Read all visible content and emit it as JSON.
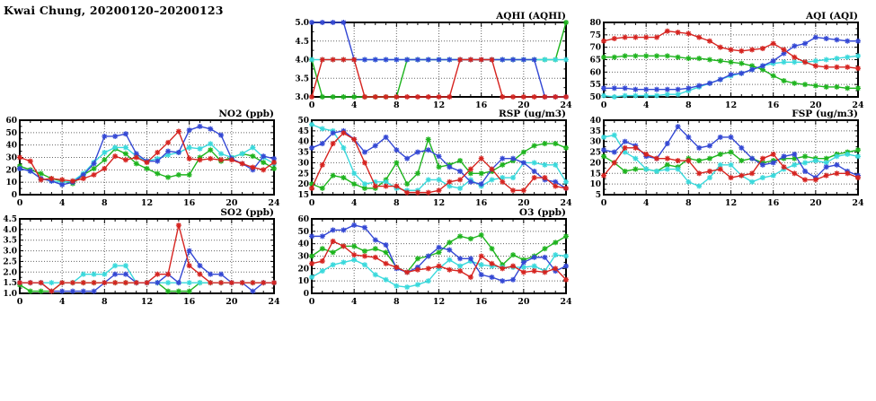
{
  "page_title": "Kwai Chung, 20200120–20200123",
  "series_colors": {
    "green": "#1fb41f",
    "cyan": "#3ad9dc",
    "blue": "#3448d4",
    "red": "#d62420"
  },
  "chart_data": [
    {
      "id": "aqhi",
      "type": "line",
      "title": "AQHI (AQHI)",
      "xlim": [
        0,
        24
      ],
      "xticks": [
        0,
        4,
        8,
        12,
        16,
        20,
        24
      ],
      "ylim": [
        3.0,
        5.0
      ],
      "yticks": [
        3.0,
        3.5,
        4.0,
        4.5,
        5.0
      ],
      "ydecimals": 1,
      "grid": true,
      "legend": "none",
      "series": [
        {
          "name": "green",
          "color": "#1fb41f",
          "values": [
            4,
            3,
            3,
            3,
            3,
            3,
            3,
            3,
            3,
            4,
            4,
            4,
            4,
            4,
            4,
            4,
            4,
            4,
            4,
            4,
            4,
            4,
            4,
            4,
            5
          ]
        },
        {
          "name": "cyan",
          "color": "#3ad9dc",
          "values": [
            4,
            4,
            4,
            4,
            4,
            4,
            4,
            4,
            4,
            4,
            4,
            4,
            4,
            4,
            4,
            4,
            4,
            4,
            4,
            4,
            4,
            4,
            4,
            4,
            4
          ]
        },
        {
          "name": "blue",
          "color": "#3448d4",
          "values": [
            5,
            5,
            5,
            5,
            4,
            4,
            4,
            4,
            4,
            4,
            4,
            4,
            4,
            4,
            4,
            4,
            4,
            4,
            4,
            4,
            4,
            4,
            3,
            3,
            3
          ]
        },
        {
          "name": "red",
          "color": "#d62420",
          "values": [
            3,
            4,
            4,
            4,
            4,
            3,
            3,
            3,
            3,
            3,
            3,
            3,
            3,
            3,
            4,
            4,
            4,
            4,
            3,
            3,
            3,
            3,
            3,
            3,
            3
          ]
        }
      ]
    },
    {
      "id": "aqi",
      "type": "line",
      "title": "AQI (AQI)",
      "xlim": [
        0,
        24
      ],
      "xticks": [
        0,
        4,
        8,
        12,
        16,
        20,
        24
      ],
      "ylim": [
        50,
        80
      ],
      "yticks": [
        50,
        55,
        60,
        65,
        70,
        75,
        80
      ],
      "ydecimals": 0,
      "grid": true,
      "legend": "none",
      "series": [
        {
          "name": "green",
          "color": "#1fb41f",
          "values": [
            66,
            66,
            66.5,
            66.5,
            66.5,
            66.5,
            66.5,
            66,
            65.5,
            65.5,
            65,
            64.5,
            64,
            63.5,
            62.5,
            61,
            58.5,
            56.5,
            55.5,
            55,
            54.5,
            54,
            54,
            53.5,
            53.5
          ]
        },
        {
          "name": "cyan",
          "color": "#3ad9dc",
          "values": [
            50.5,
            50,
            50.5,
            50.5,
            50.5,
            50.5,
            51,
            51,
            52.5,
            54,
            55.5,
            57,
            58.5,
            59.5,
            61,
            62.5,
            63.5,
            64,
            64,
            64,
            64.5,
            65,
            65.5,
            66,
            66.5
          ]
        },
        {
          "name": "blue",
          "color": "#3448d4",
          "values": [
            53.5,
            53.5,
            53.5,
            53,
            53,
            53,
            53,
            53,
            53.5,
            54.5,
            55.5,
            57,
            59,
            59.5,
            61,
            62.5,
            64.5,
            67.5,
            70.5,
            71.5,
            74,
            73.5,
            73,
            72.5,
            72.5
          ]
        },
        {
          "name": "red",
          "color": "#d62420",
          "values": [
            72.5,
            73.5,
            74,
            74,
            74,
            74,
            76.5,
            76,
            75.5,
            74,
            72.5,
            70,
            69,
            68.5,
            69,
            69.5,
            71.5,
            69,
            66,
            64,
            62.5,
            62,
            62,
            62,
            61.5
          ]
        }
      ]
    },
    {
      "id": "no2",
      "type": "line",
      "title": "NO2 (ppb)",
      "xlim": [
        0,
        24
      ],
      "xticks": [
        0,
        4,
        8,
        12,
        16,
        20,
        24
      ],
      "ylim": [
        0,
        60
      ],
      "yticks": [
        0,
        10,
        20,
        30,
        40,
        50,
        60
      ],
      "ydecimals": 0,
      "grid": true,
      "legend": "none",
      "series": [
        {
          "name": "green",
          "color": "#1fb41f",
          "values": [
            23,
            20,
            17,
            13,
            11,
            9,
            16,
            21,
            28,
            37,
            33,
            25,
            21,
            17,
            14,
            16,
            16,
            30,
            36,
            27,
            30,
            33,
            31,
            26,
            21
          ]
        },
        {
          "name": "cyan",
          "color": "#3ad9dc",
          "values": [
            21,
            19,
            13,
            11,
            10,
            11,
            17,
            26,
            34,
            38,
            38,
            31,
            27,
            29,
            32,
            34,
            38,
            37,
            41,
            33,
            30,
            33,
            38,
            30,
            25
          ]
        },
        {
          "name": "blue",
          "color": "#3448d4",
          "values": [
            21,
            19,
            13,
            11,
            8,
            10,
            16,
            25,
            47,
            47,
            49,
            33,
            27,
            27,
            35,
            34,
            52,
            55,
            53,
            48,
            29,
            25,
            20,
            31,
            29
          ]
        },
        {
          "name": "red",
          "color": "#d62420",
          "values": [
            30,
            27,
            12,
            13,
            12,
            11,
            13,
            16,
            21,
            31,
            28,
            30,
            26,
            34,
            42,
            51,
            29,
            28,
            29,
            28,
            28,
            25,
            22,
            20,
            26
          ]
        }
      ]
    },
    {
      "id": "rsp",
      "type": "line",
      "title": "RSP (ug/m3)",
      "xlim": [
        0,
        24
      ],
      "xticks": [
        0,
        4,
        8,
        12,
        16,
        20,
        24
      ],
      "ylim": [
        15,
        50
      ],
      "yticks": [
        15,
        20,
        25,
        30,
        35,
        40,
        45,
        50
      ],
      "ydecimals": 0,
      "grid": true,
      "legend": "none",
      "series": [
        {
          "name": "green",
          "color": "#1fb41f",
          "values": [
            20,
            18,
            24,
            23,
            20,
            18,
            18,
            22,
            30,
            20,
            25,
            41,
            28,
            29,
            31,
            25,
            25,
            26,
            29,
            31,
            35,
            38,
            39,
            39,
            37
          ]
        },
        {
          "name": "cyan",
          "color": "#3ad9dc",
          "values": [
            48,
            46,
            45,
            37,
            25,
            20,
            21,
            21,
            18,
            17,
            17,
            22,
            22,
            19,
            18,
            22,
            19,
            22,
            23,
            23,
            30,
            30,
            29,
            29,
            21
          ]
        },
        {
          "name": "blue",
          "color": "#3448d4",
          "values": [
            37,
            39,
            44,
            45,
            41,
            35,
            38,
            42,
            36,
            32,
            35,
            36,
            33,
            28,
            26,
            21,
            20,
            27,
            32,
            32,
            30,
            26,
            22,
            21,
            18
          ]
        },
        {
          "name": "red",
          "color": "#d62420",
          "values": [
            18,
            29,
            39,
            44,
            41,
            30,
            19,
            19,
            19,
            16,
            16,
            16,
            17,
            21,
            22,
            27,
            32,
            27,
            21,
            17,
            17,
            23,
            23,
            19,
            18
          ]
        }
      ]
    },
    {
      "id": "fsp",
      "type": "line",
      "title": "FSP (ug/m3)",
      "xlim": [
        0,
        24
      ],
      "xticks": [
        0,
        4,
        8,
        12,
        16,
        20,
        24
      ],
      "ylim": [
        5,
        40
      ],
      "yticks": [
        5,
        10,
        15,
        20,
        25,
        30,
        35,
        40
      ],
      "ydecimals": 0,
      "grid": true,
      "legend": "none",
      "series": [
        {
          "name": "green",
          "color": "#1fb41f",
          "values": [
            23,
            20,
            16,
            17,
            17,
            16,
            19,
            18,
            22,
            21,
            22,
            24,
            25,
            21,
            22,
            20,
            21,
            22,
            22,
            23,
            22,
            22,
            24,
            25,
            26
          ]
        },
        {
          "name": "cyan",
          "color": "#3ad9dc",
          "values": [
            32,
            33,
            25,
            22,
            17,
            16,
            17,
            17,
            11,
            9,
            13,
            19,
            19,
            14,
            11,
            13,
            14,
            17,
            19,
            20,
            21,
            20,
            23,
            24,
            23
          ]
        },
        {
          "name": "blue",
          "color": "#3448d4",
          "values": [
            26,
            25,
            30,
            28,
            23,
            22,
            29,
            37,
            32,
            27,
            28,
            32,
            32,
            27,
            22,
            19,
            20,
            23,
            24,
            16,
            13,
            18,
            19,
            16,
            14
          ]
        },
        {
          "name": "red",
          "color": "#d62420",
          "values": [
            14,
            20,
            27,
            27,
            24,
            22,
            22,
            21,
            21,
            15,
            16,
            17,
            13,
            14,
            15,
            22,
            24,
            18,
            15,
            12,
            12,
            14,
            15,
            15,
            13
          ]
        }
      ]
    },
    {
      "id": "so2",
      "type": "line",
      "title": "SO2 (ppb)",
      "xlim": [
        0,
        24
      ],
      "xticks": [
        0,
        4,
        8,
        12,
        16,
        20,
        24
      ],
      "ylim": [
        1.0,
        4.5
      ],
      "yticks": [
        1.0,
        1.5,
        2.0,
        2.5,
        3.0,
        3.5,
        4.0,
        4.5
      ],
      "ydecimals": 1,
      "grid": true,
      "legend": "none",
      "series": [
        {
          "name": "green",
          "color": "#1fb41f",
          "values": [
            1.4,
            1.1,
            1.1,
            1.1,
            1.5,
            1.5,
            1.5,
            1.5,
            1.5,
            1.5,
            1.5,
            1.5,
            1.5,
            1.5,
            1.1,
            1.1,
            1.1,
            1.5,
            1.5,
            1.5,
            1.5,
            1.5,
            1.5,
            1.5,
            1.5
          ]
        },
        {
          "name": "cyan",
          "color": "#3ad9dc",
          "values": [
            1.5,
            1.5,
            1.5,
            1.5,
            1.5,
            1.5,
            1.9,
            1.9,
            1.9,
            2.3,
            2.3,
            1.5,
            1.5,
            1.5,
            1.5,
            1.5,
            1.5,
            1.5,
            1.5,
            1.5,
            1.5,
            1.5,
            1.5,
            1.5,
            1.5
          ]
        },
        {
          "name": "blue",
          "color": "#3448d4",
          "values": [
            1.5,
            1.5,
            1.5,
            1.1,
            1.1,
            1.1,
            1.1,
            1.1,
            1.5,
            1.9,
            1.9,
            1.5,
            1.5,
            1.5,
            1.9,
            1.5,
            3.0,
            2.3,
            1.9,
            1.9,
            1.5,
            1.5,
            1.1,
            1.5,
            1.5
          ]
        },
        {
          "name": "red",
          "color": "#d62420",
          "values": [
            1.5,
            1.5,
            1.5,
            1.1,
            1.5,
            1.5,
            1.5,
            1.5,
            1.5,
            1.5,
            1.5,
            1.5,
            1.5,
            1.9,
            1.9,
            4.2,
            2.3,
            1.9,
            1.5,
            1.5,
            1.5,
            1.5,
            1.5,
            1.5,
            1.5
          ]
        }
      ]
    },
    {
      "id": "o3",
      "type": "line",
      "title": "O3 (ppb)",
      "xlim": [
        0,
        24
      ],
      "xticks": [
        0,
        4,
        8,
        12,
        16,
        20,
        24
      ],
      "ylim": [
        0,
        60
      ],
      "yticks": [
        0,
        10,
        20,
        30,
        40,
        50,
        60
      ],
      "ydecimals": 0,
      "grid": true,
      "legend": "none",
      "series": [
        {
          "name": "green",
          "color": "#1fb41f",
          "values": [
            30,
            36,
            33,
            38,
            38,
            34,
            36,
            33,
            21,
            17,
            28,
            30,
            33,
            41,
            46,
            44,
            47,
            36,
            23,
            31,
            27,
            30,
            36,
            41,
            46
          ]
        },
        {
          "name": "cyan",
          "color": "#3ad9dc",
          "values": [
            13,
            18,
            23,
            25,
            27,
            23,
            15,
            11,
            6,
            5,
            7,
            10,
            20,
            27,
            22,
            26,
            23,
            22,
            21,
            21,
            21,
            22,
            18,
            31,
            30
          ]
        },
        {
          "name": "blue",
          "color": "#3448d4",
          "values": [
            46,
            46,
            51,
            51,
            55,
            53,
            43,
            39,
            20,
            17,
            21,
            30,
            37,
            35,
            28,
            28,
            15,
            13,
            10,
            11,
            25,
            29,
            29,
            18,
            22
          ]
        },
        {
          "name": "red",
          "color": "#d62420",
          "values": [
            24,
            26,
            42,
            38,
            31,
            30,
            29,
            24,
            21,
            17,
            19,
            20,
            22,
            19,
            18,
            13,
            30,
            24,
            20,
            22,
            17,
            18,
            17,
            20,
            11
          ]
        }
      ]
    }
  ]
}
